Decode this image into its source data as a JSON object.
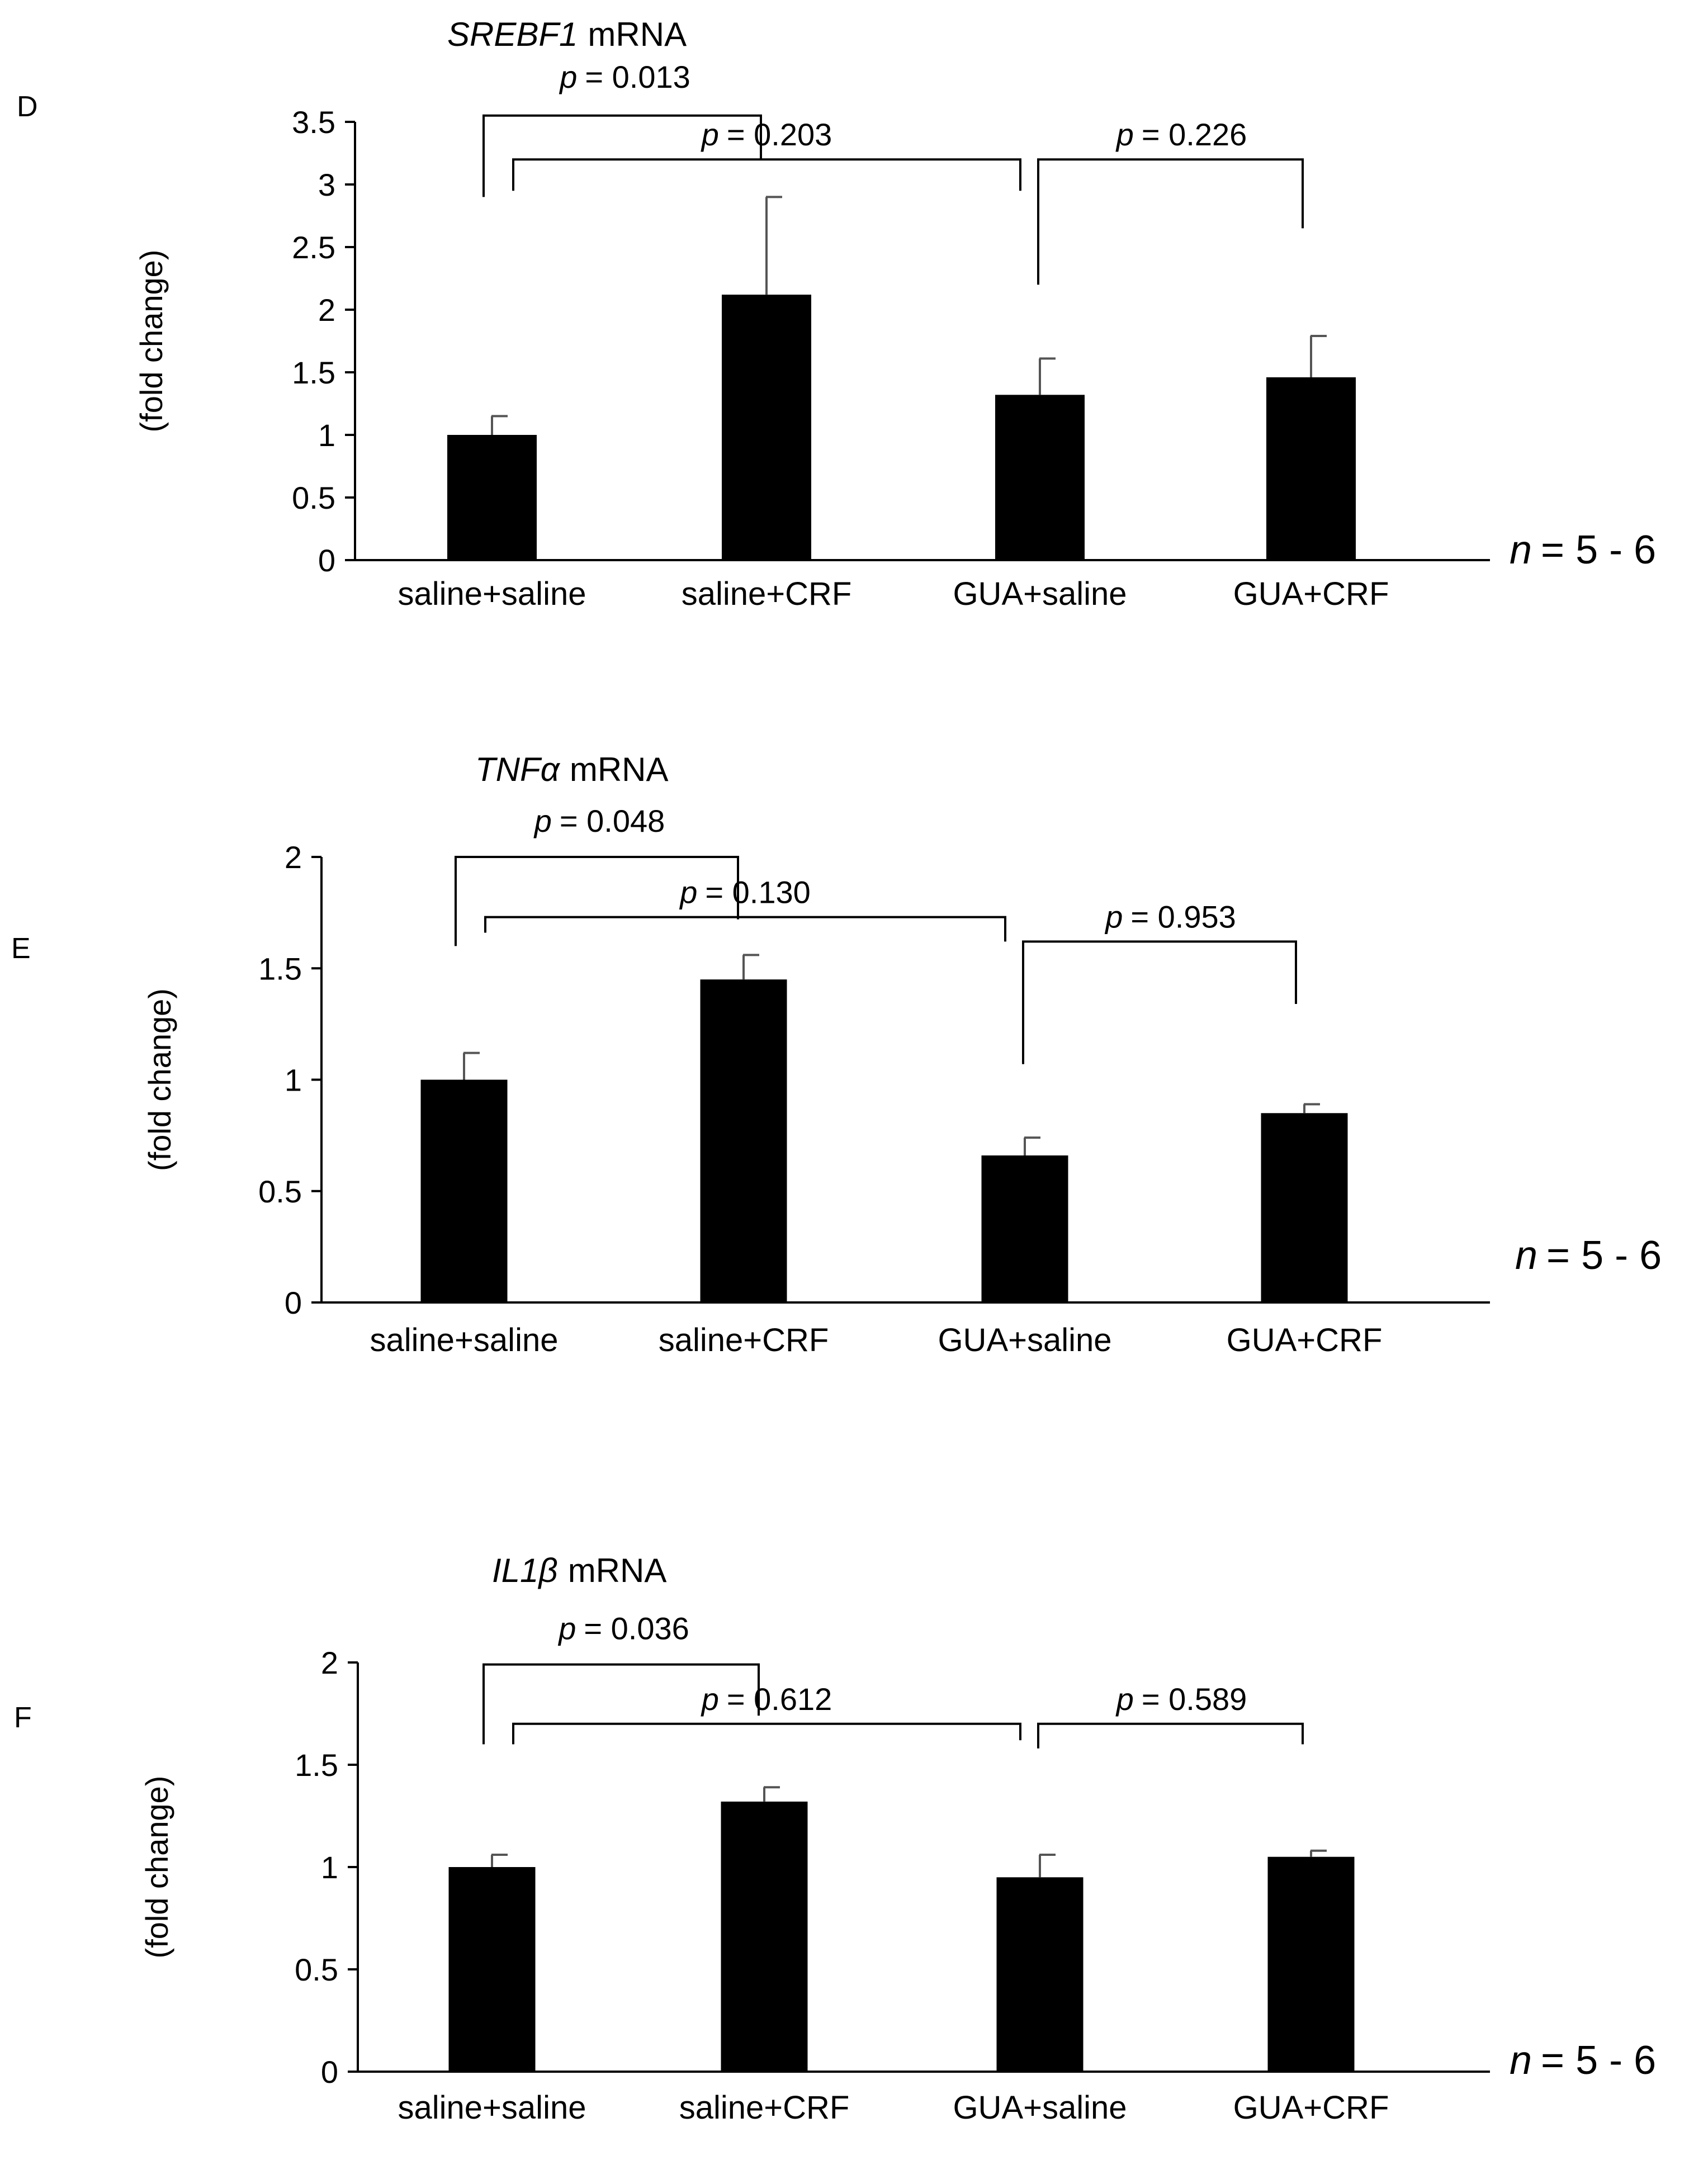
{
  "chart_data": [
    {
      "type": "bar",
      "panel_label": "D",
      "title_gene": "SREBF1",
      "title_suffix": "mRNA",
      "ylabel": "(fold change)",
      "categories": [
        "saline+saline",
        "saline+CRF",
        "GUA+saline",
        "GUA+CRF"
      ],
      "values": [
        1.0,
        2.12,
        1.32,
        1.46
      ],
      "errors": [
        0.15,
        0.78,
        0.29,
        0.33
      ],
      "ylim": [
        0,
        3.5
      ],
      "yticks": [
        "0",
        "0.5",
        "1",
        "1.5",
        "2",
        "2.5",
        "3",
        "3.5"
      ],
      "ytick_values": [
        0,
        0.5,
        1,
        1.5,
        2,
        2.5,
        3,
        3.5
      ],
      "sample_size": "= 5 - 6",
      "comparisons": [
        {
          "from": 0,
          "to": 1,
          "p_label": "p",
          "p_value": "= 0.013",
          "from_y": 2.9,
          "to_y": 3.2,
          "top": 3.55
        },
        {
          "from": 0,
          "to": 2,
          "p_label": "p",
          "p_value": "= 0.203",
          "from_y": 2.95,
          "to_y": 2.95,
          "top": 3.2
        },
        {
          "from": 2,
          "to": 3,
          "p_label": "p",
          "p_value": "=  0.226",
          "from_y": 2.2,
          "to_y": 2.65,
          "top": 3.2
        }
      ]
    },
    {
      "type": "bar",
      "panel_label": "E",
      "title_gene": "TNFα",
      "title_suffix": "mRNA",
      "ylabel": "(fold change)",
      "categories": [
        "saline+saline",
        "saline+CRF",
        "GUA+saline",
        "GUA+CRF"
      ],
      "values": [
        1.0,
        1.45,
        0.66,
        0.85
      ],
      "errors": [
        0.12,
        0.11,
        0.08,
        0.04
      ],
      "ylim": [
        0,
        2
      ],
      "yticks": [
        "0",
        "0.5",
        "1",
        "1.5",
        "2"
      ],
      "ytick_values": [
        0,
        0.5,
        1,
        1.5,
        2
      ],
      "sample_size": "= 5 - 6",
      "comparisons": [
        {
          "from": 0,
          "to": 1,
          "p_label": "p",
          "p_value": "= 0.048",
          "from_y": 1.6,
          "to_y": 1.72,
          "top": 2.0
        },
        {
          "from": 0,
          "to": 2,
          "p_label": "p",
          "p_value": "= 0.130",
          "from_y": 1.66,
          "to_y": 1.62,
          "top": 1.73
        },
        {
          "from": 2,
          "to": 3,
          "p_label": "p",
          "p_value": "= 0.953",
          "from_y": 1.07,
          "to_y": 1.34,
          "top": 1.62
        }
      ]
    },
    {
      "type": "bar",
      "panel_label": "F",
      "title_gene": "IL1β",
      "title_suffix": "mRNA",
      "ylabel": "(fold change)",
      "categories": [
        "saline+saline",
        "saline+CRF",
        "GUA+saline",
        "GUA+CRF"
      ],
      "values": [
        1.0,
        1.32,
        0.95,
        1.05
      ],
      "errors": [
        0.06,
        0.07,
        0.11,
        0.03
      ],
      "ylim": [
        0,
        2
      ],
      "yticks": [
        "0",
        "0.5",
        "1",
        "1.5",
        "2"
      ],
      "ytick_values": [
        0,
        0.5,
        1,
        1.5,
        2
      ],
      "sample_size": "= 5 - 6",
      "comparisons": [
        {
          "from": 0,
          "to": 1,
          "p_label": "p",
          "p_value": "= 0.036",
          "from_y": 1.6,
          "to_y": 1.74,
          "top": 1.99
        },
        {
          "from": 0,
          "to": 2,
          "p_label": "p",
          "p_value": "= 0.612",
          "from_y": 1.6,
          "to_y": 1.62,
          "top": 1.7
        },
        {
          "from": 2,
          "to": 3,
          "p_label": "p",
          "p_value": "= 0.589",
          "from_y": 1.58,
          "to_y": 1.6,
          "top": 1.7
        }
      ]
    }
  ]
}
